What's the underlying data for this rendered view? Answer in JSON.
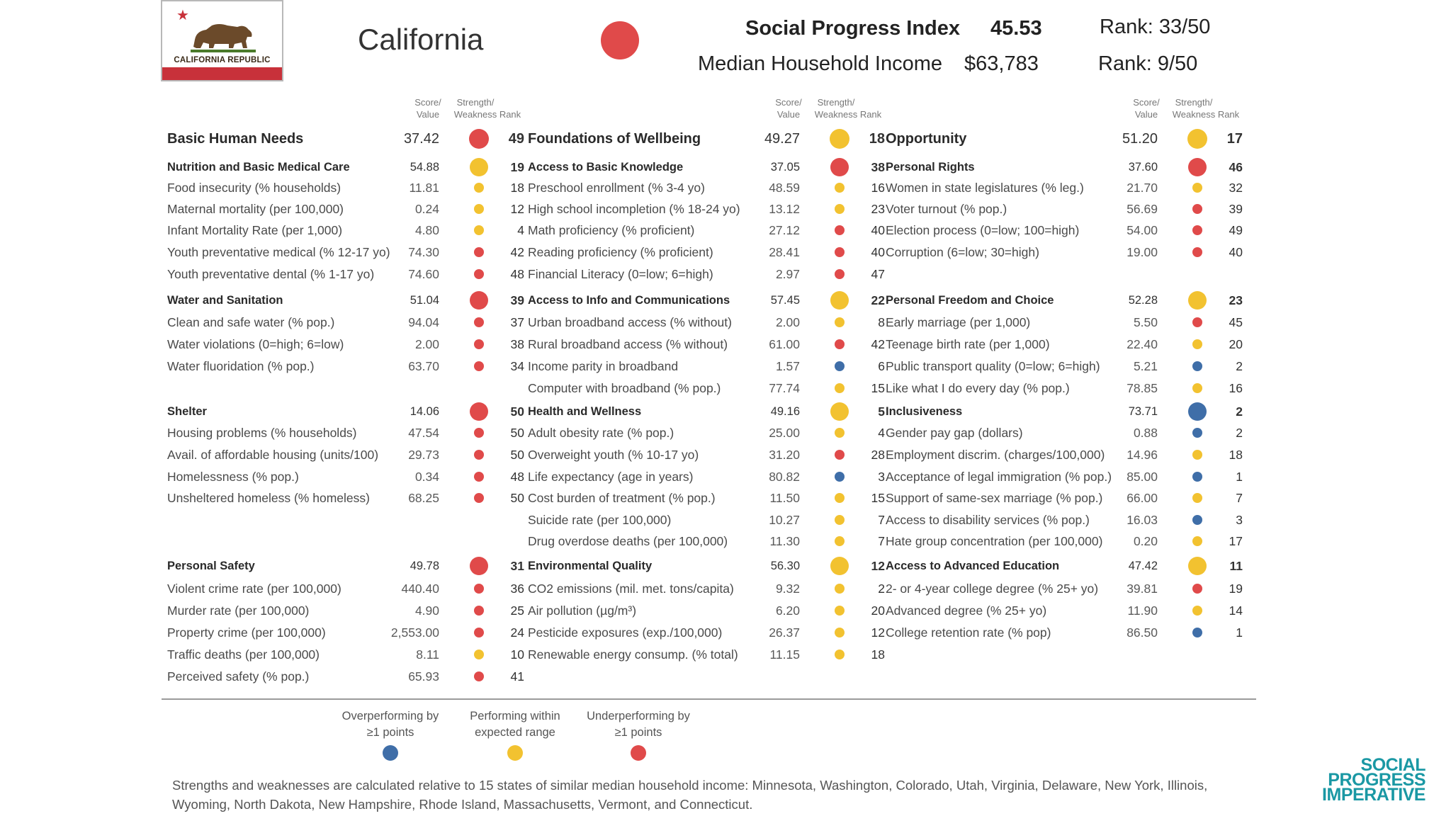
{
  "header": {
    "flag_text": "CALIFORNIA REPUBLIC",
    "state": "California",
    "spi_label": "Social Progress Index",
    "spi_value": "45.53",
    "spi_rank": "Rank: 33/50",
    "income_label": "Median Household Income",
    "income_value": "$63,783",
    "income_rank": "Rank: 9/50",
    "state_color": "#e04a4a"
  },
  "column_headers": {
    "score": [
      "Score/",
      "Value"
    ],
    "strength": [
      "Strength/",
      "Weakness"
    ],
    "rank": "Rank"
  },
  "colors": {
    "red": "#e04a4a",
    "yellow": "#f2c230",
    "blue": "#3f6ea8",
    "teal": "#1a98a4"
  },
  "columns": [
    {
      "rows": [
        {
          "kind": "dim",
          "label": "Basic Human Needs",
          "value": "37.42",
          "status": "red",
          "rank": "49"
        },
        {
          "kind": "comp",
          "label": "Nutrition and Basic Medical Care",
          "value": "54.88",
          "status": "yellow",
          "rank": "19"
        },
        {
          "kind": "ind",
          "label": "Food insecurity (% households)",
          "value": "11.81",
          "status": "yellow",
          "rank": "18"
        },
        {
          "kind": "ind",
          "label": "Maternal mortality (per 100,000)",
          "value": "0.24",
          "status": "yellow",
          "rank": "12"
        },
        {
          "kind": "ind",
          "label": "Infant Mortality Rate (per 1,000)",
          "value": "4.80",
          "status": "yellow",
          "rank": "4"
        },
        {
          "kind": "ind",
          "label": "Youth preventative medical (% 12-17 yo)",
          "value": "74.30",
          "status": "red",
          "rank": "42"
        },
        {
          "kind": "ind",
          "label": "Youth preventative dental (% 1-17 yo)",
          "value": "74.60",
          "status": "red",
          "rank": "48"
        },
        {
          "kind": "comp",
          "label": "Water and Sanitation",
          "value": "51.04",
          "status": "red",
          "rank": "39"
        },
        {
          "kind": "ind",
          "label": "Clean and safe water (% pop.)",
          "value": "94.04",
          "status": "red",
          "rank": "37"
        },
        {
          "kind": "ind",
          "label": "Water violations (0=high; 6=low)",
          "value": "2.00",
          "status": "red",
          "rank": "38"
        },
        {
          "kind": "ind",
          "label": "Water fluoridation (% pop.)",
          "value": "63.70",
          "status": "red",
          "rank": "34"
        },
        {
          "kind": "comp",
          "label": "Shelter",
          "value": "14.06",
          "status": "red",
          "rank": "50"
        },
        {
          "kind": "ind",
          "label": "Housing problems (% households)",
          "value": "47.54",
          "status": "red",
          "rank": "50"
        },
        {
          "kind": "ind",
          "label": "Avail. of affordable housing (units/100)",
          "value": "29.73",
          "status": "red",
          "rank": "50"
        },
        {
          "kind": "ind",
          "label": "Homelessness (% pop.)",
          "value": "0.34",
          "status": "red",
          "rank": "48"
        },
        {
          "kind": "ind",
          "label": "Unsheltered homeless (% homeless)",
          "value": "68.25",
          "status": "red",
          "rank": "50"
        },
        {
          "kind": "comp",
          "label": "Personal Safety",
          "value": "49.78",
          "status": "red",
          "rank": "31"
        },
        {
          "kind": "ind",
          "label": "Violent crime rate (per 100,000)",
          "value": "440.40",
          "status": "red",
          "rank": "36"
        },
        {
          "kind": "ind",
          "label": "Murder rate (per 100,000)",
          "value": "4.90",
          "status": "red",
          "rank": "25"
        },
        {
          "kind": "ind",
          "label": "Property crime (per 100,000)",
          "value": "2,553.00",
          "status": "red",
          "rank": "24"
        },
        {
          "kind": "ind",
          "label": "Traffic deaths (per 100,000)",
          "value": "8.11",
          "status": "yellow",
          "rank": "10"
        },
        {
          "kind": "ind",
          "label": "Perceived safety (% pop.)",
          "value": "65.93",
          "status": "red",
          "rank": "41"
        }
      ]
    },
    {
      "rows": [
        {
          "kind": "dim",
          "label": "Foundations of Wellbeing",
          "value": "49.27",
          "status": "yellow",
          "rank": "18"
        },
        {
          "kind": "comp",
          "label": "Access to Basic Knowledge",
          "value": "37.05",
          "status": "red",
          "rank": "38"
        },
        {
          "kind": "ind",
          "label": "Preschool enrollment (% 3-4 yo)",
          "value": "48.59",
          "status": "yellow",
          "rank": "16"
        },
        {
          "kind": "ind",
          "label": "High school incompletion (% 18-24 yo)",
          "value": "13.12",
          "status": "yellow",
          "rank": "23"
        },
        {
          "kind": "ind",
          "label": "Math proficiency (% proficient)",
          "value": "27.12",
          "status": "red",
          "rank": "40"
        },
        {
          "kind": "ind",
          "label": "Reading proficiency (% proficient)",
          "value": "28.41",
          "status": "red",
          "rank": "40"
        },
        {
          "kind": "ind",
          "label": "Financial Literacy (0=low; 6=high)",
          "value": "2.97",
          "status": "red",
          "rank": "47"
        },
        {
          "kind": "comp",
          "label": "Access to Info and Communications",
          "value": "57.45",
          "status": "yellow",
          "rank": "22"
        },
        {
          "kind": "ind",
          "label": "Urban broadband access (% without)",
          "value": "2.00",
          "status": "yellow",
          "rank": "8"
        },
        {
          "kind": "ind",
          "label": "Rural broadband access (% without)",
          "value": "61.00",
          "status": "red",
          "rank": "42"
        },
        {
          "kind": "ind",
          "label": "Income parity in broadband",
          "value": "1.57",
          "status": "blue",
          "rank": "6"
        },
        {
          "kind": "ind",
          "label": "Computer with broadband (% pop.)",
          "value": "77.74",
          "status": "yellow",
          "rank": "15"
        },
        {
          "kind": "comp",
          "label": "Health and Wellness",
          "value": "49.16",
          "status": "yellow",
          "rank": "5"
        },
        {
          "kind": "ind",
          "label": "Adult obesity rate (% pop.)",
          "value": "25.00",
          "status": "yellow",
          "rank": "4"
        },
        {
          "kind": "ind",
          "label": "Overweight youth (% 10-17 yo)",
          "value": "31.20",
          "status": "red",
          "rank": "28"
        },
        {
          "kind": "ind",
          "label": "Life expectancy (age in years)",
          "value": "80.82",
          "status": "blue",
          "rank": "3"
        },
        {
          "kind": "ind",
          "label": "Cost burden of treatment (% pop.)",
          "value": "11.50",
          "status": "yellow",
          "rank": "15"
        },
        {
          "kind": "ind",
          "label": "Suicide rate (per 100,000)",
          "value": "10.27",
          "status": "yellow",
          "rank": "7"
        },
        {
          "kind": "ind",
          "label": "Drug overdose deaths (per 100,000)",
          "value": "11.30",
          "status": "yellow",
          "rank": "7"
        },
        {
          "kind": "comp",
          "label": "Environmental Quality",
          "value": "56.30",
          "status": "yellow",
          "rank": "12"
        },
        {
          "kind": "ind",
          "label": "CO2 emissions (mil. met. tons/capita)",
          "value": "9.32",
          "status": "yellow",
          "rank": "2"
        },
        {
          "kind": "ind",
          "label": "Air pollution (µg/m³)",
          "value": "6.20",
          "status": "yellow",
          "rank": "20"
        },
        {
          "kind": "ind",
          "label": "Pesticide exposures (exp./100,000)",
          "value": "26.37",
          "status": "yellow",
          "rank": "12"
        },
        {
          "kind": "ind",
          "label": "Renewable energy consump. (% total)",
          "value": "11.15",
          "status": "yellow",
          "rank": "18"
        }
      ]
    },
    {
      "rows": [
        {
          "kind": "dim",
          "label": "Opportunity",
          "value": "51.20",
          "status": "yellow",
          "rank": "17"
        },
        {
          "kind": "comp",
          "label": "Personal Rights",
          "value": "37.60",
          "status": "red",
          "rank": "46"
        },
        {
          "kind": "ind",
          "label": "Women in state legislatures (% leg.)",
          "value": "21.70",
          "status": "yellow",
          "rank": "32"
        },
        {
          "kind": "ind",
          "label": "Voter turnout (% pop.)",
          "value": "56.69",
          "status": "red",
          "rank": "39"
        },
        {
          "kind": "ind",
          "label": "Election process (0=low; 100=high)",
          "value": "54.00",
          "status": "red",
          "rank": "49"
        },
        {
          "kind": "ind",
          "label": "Corruption (6=low; 30=high)",
          "value": "19.00",
          "status": "red",
          "rank": "40"
        },
        {
          "kind": "comp",
          "label": "Personal Freedom and Choice",
          "value": "52.28",
          "status": "yellow",
          "rank": "23"
        },
        {
          "kind": "ind",
          "label": "Early marriage (per 1,000)",
          "value": "5.50",
          "status": "red",
          "rank": "45"
        },
        {
          "kind": "ind",
          "label": "Teenage birth rate (per 1,000)",
          "value": "22.40",
          "status": "yellow",
          "rank": "20"
        },
        {
          "kind": "ind",
          "label": "Public transport quality (0=low; 6=high)",
          "value": "5.21",
          "status": "blue",
          "rank": "2"
        },
        {
          "kind": "ind",
          "label": "Like what I do every day (% pop.)",
          "value": "78.85",
          "status": "yellow",
          "rank": "16"
        },
        {
          "kind": "comp",
          "label": "Inclusiveness",
          "value": "73.71",
          "status": "blue",
          "rank": "2"
        },
        {
          "kind": "ind",
          "label": "Gender pay gap (dollars)",
          "value": "0.88",
          "status": "blue",
          "rank": "2"
        },
        {
          "kind": "ind",
          "label": "Employment discrim. (charges/100,000)",
          "value": "14.96",
          "status": "yellow",
          "rank": "18"
        },
        {
          "kind": "ind",
          "label": "Acceptance of legal immigration (% pop.)",
          "value": "85.00",
          "status": "blue",
          "rank": "1"
        },
        {
          "kind": "ind",
          "label": "Support of same-sex marriage (% pop.)",
          "value": "66.00",
          "status": "yellow",
          "rank": "7"
        },
        {
          "kind": "ind",
          "label": "Access to disability services (% pop.)",
          "value": "16.03",
          "status": "blue",
          "rank": "3"
        },
        {
          "kind": "ind",
          "label": "Hate group concentration (per 100,000)",
          "value": "0.20",
          "status": "yellow",
          "rank": "17"
        },
        {
          "kind": "comp",
          "label": "Access to Advanced Education",
          "value": "47.42",
          "status": "yellow",
          "rank": "11"
        },
        {
          "kind": "ind",
          "label": "2- or 4-year college degree (% 25+ yo)",
          "value": "39.81",
          "status": "red",
          "rank": "19"
        },
        {
          "kind": "ind",
          "label": "Advanced degree (% 25+ yo)",
          "value": "11.90",
          "status": "yellow",
          "rank": "14"
        },
        {
          "kind": "ind",
          "label": "College retention rate (% pop)",
          "value": "86.50",
          "status": "blue",
          "rank": "1"
        }
      ]
    }
  ],
  "legend": [
    {
      "lines": [
        "Overperforming by",
        "≥1 points"
      ],
      "status": "blue"
    },
    {
      "lines": [
        "Performing within",
        "expected range"
      ],
      "status": "yellow"
    },
    {
      "lines": [
        "Underperforming by",
        "≥1 points"
      ],
      "status": "red"
    }
  ],
  "footnote": "Strengths and weaknesses are calculated relative to 15 states of similar median household income: Minnesota, Washington, Colorado, Utah, Virginia, Delaware, New York, Illinois, Wyoming, North Dakota, New Hampshire, Rhode Island, Massachusetts, Vermont, and Connecticut.",
  "logo": [
    "SOCIAL",
    "PROGRESS",
    "IMPERATIVE"
  ]
}
